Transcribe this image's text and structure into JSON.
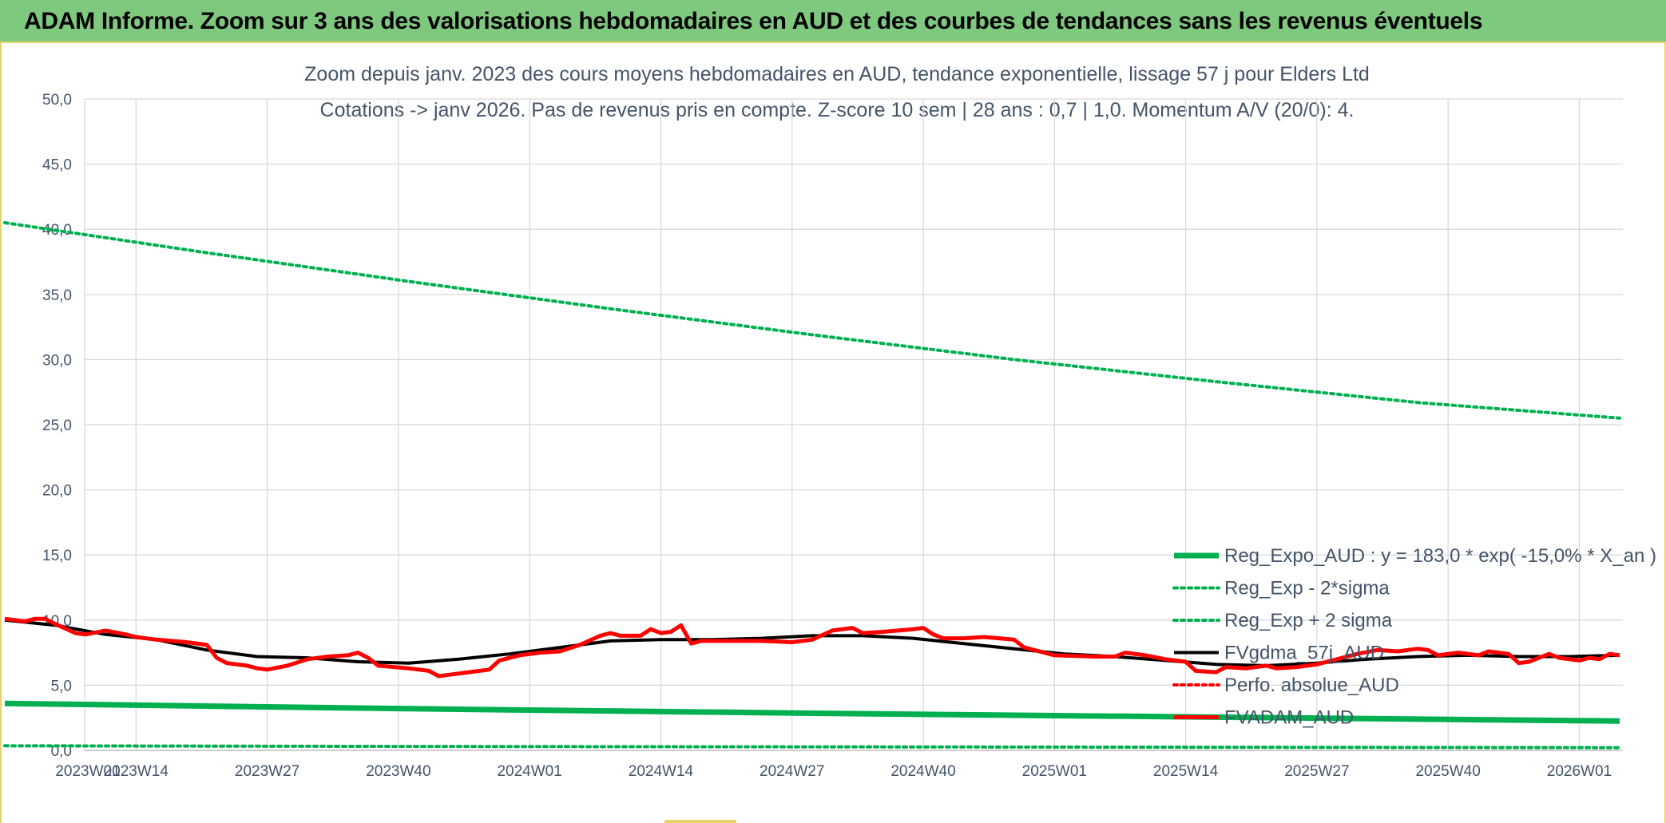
{
  "header": {
    "title": "ADAM Informe. Zoom sur 3 ans des valorisations hebdomadaires en AUD et des courbes de tendances sans les revenus éventuels"
  },
  "colors": {
    "banner": "#7fc97f",
    "border": "#e8d36a",
    "green": "#00b050",
    "red": "#ff0000",
    "black": "#000000",
    "grid": "#d9d9d9",
    "text": "#44546a"
  },
  "chart_data": {
    "type": "line",
    "title_line1": "Zoom depuis janv. 2023 des cours moyens hebdomadaires en AUD, tendance exponentielle, lissage 57 j pour Elders Ltd",
    "title_line2": "Cotations -> janv 2026. Pas de revenus pris en compte. Z-score 10 sem | 28 ans : 0,7 | 1,0. Momentum A/V (20/0): 4.",
    "xlabel": "",
    "ylabel": "",
    "ylim": [
      0,
      50
    ],
    "yticks": [
      "0,0",
      "5,0",
      "10,0",
      "15,0",
      "20,0",
      "25,0",
      "30,0",
      "35,0",
      "40,0",
      "45,0",
      "50,0"
    ],
    "x_range_weeks": [
      0,
      160
    ],
    "xticks": [
      {
        "label": "2023W01",
        "week": 0
      },
      {
        "label": "2023W14",
        "week": 13
      },
      {
        "label": "2023W27",
        "week": 26
      },
      {
        "label": "2023W40",
        "week": 39
      },
      {
        "label": "2024W01",
        "week": 52
      },
      {
        "label": "2024W14",
        "week": 65
      },
      {
        "label": "2024W27",
        "week": 78
      },
      {
        "label": "2024W40",
        "week": 91
      },
      {
        "label": "2025W01",
        "week": 104
      },
      {
        "label": "2025W14",
        "week": 117
      },
      {
        "label": "2025W27",
        "week": 130
      },
      {
        "label": "2025W40",
        "week": 143
      },
      {
        "label": "2026W01",
        "week": 156
      }
    ],
    "grid": true,
    "legend_position": "bottom-right",
    "series": [
      {
        "name": "Reg_Expo_AUD : y = 183,0 * exp( -15,0% *  X_an )",
        "style": "solid-thick",
        "color": "#00b050",
        "points": [
          [
            0,
            3.6
          ],
          [
            40,
            3.2
          ],
          [
            80,
            2.85
          ],
          [
            120,
            2.55
          ],
          [
            160,
            2.25
          ]
        ]
      },
      {
        "name": "Reg_Exp - 2*sigma",
        "style": "dotted",
        "color": "#00b050",
        "points": [
          [
            0,
            0.35
          ],
          [
            40,
            0.3
          ],
          [
            80,
            0.27
          ],
          [
            120,
            0.24
          ],
          [
            160,
            0.21
          ]
        ]
      },
      {
        "name": "Reg_Exp + 2 sigma",
        "style": "dotted",
        "color": "#00b050",
        "points": [
          [
            0,
            40.5
          ],
          [
            20,
            38.2
          ],
          [
            40,
            36.0
          ],
          [
            60,
            33.9
          ],
          [
            80,
            31.9
          ],
          [
            100,
            30.0
          ],
          [
            120,
            28.3
          ],
          [
            140,
            26.7
          ],
          [
            160,
            25.5
          ]
        ]
      },
      {
        "name": "FVgdma_57j_AUD",
        "style": "solid",
        "color": "#000000",
        "points": [
          [
            0,
            10.0
          ],
          [
            5,
            9.6
          ],
          [
            10,
            8.9
          ],
          [
            15,
            8.5
          ],
          [
            20,
            7.7
          ],
          [
            25,
            7.2
          ],
          [
            30,
            7.1
          ],
          [
            35,
            6.8
          ],
          [
            40,
            6.7
          ],
          [
            45,
            7.0
          ],
          [
            50,
            7.4
          ],
          [
            55,
            7.9
          ],
          [
            60,
            8.4
          ],
          [
            65,
            8.5
          ],
          [
            70,
            8.5
          ],
          [
            75,
            8.6
          ],
          [
            80,
            8.8
          ],
          [
            85,
            8.8
          ],
          [
            90,
            8.6
          ],
          [
            95,
            8.2
          ],
          [
            100,
            7.8
          ],
          [
            105,
            7.4
          ],
          [
            110,
            7.2
          ],
          [
            115,
            6.9
          ],
          [
            120,
            6.6
          ],
          [
            125,
            6.5
          ],
          [
            130,
            6.7
          ],
          [
            135,
            7.0
          ],
          [
            140,
            7.2
          ],
          [
            145,
            7.3
          ],
          [
            150,
            7.2
          ],
          [
            155,
            7.2
          ],
          [
            160,
            7.3
          ]
        ]
      },
      {
        "name": "Perfo. absolue_AUD",
        "style": "dotted",
        "color": "#ff0000",
        "points": []
      },
      {
        "name": "FVADAM_AUD",
        "style": "solid-thick",
        "color": "#ff0000",
        "points": [
          [
            0,
            10.1
          ],
          [
            2,
            9.9
          ],
          [
            3,
            10.1
          ],
          [
            4,
            10.1
          ],
          [
            5,
            9.7
          ],
          [
            7,
            9.0
          ],
          [
            8,
            8.9
          ],
          [
            10,
            9.2
          ],
          [
            12,
            8.9
          ],
          [
            13,
            8.7
          ],
          [
            15,
            8.5
          ],
          [
            18,
            8.3
          ],
          [
            20,
            8.1
          ],
          [
            21,
            7.1
          ],
          [
            22,
            6.7
          ],
          [
            24,
            6.5
          ],
          [
            25,
            6.3
          ],
          [
            26,
            6.2
          ],
          [
            28,
            6.5
          ],
          [
            30,
            7.0
          ],
          [
            32,
            7.2
          ],
          [
            34,
            7.3
          ],
          [
            35,
            7.5
          ],
          [
            36,
            7.1
          ],
          [
            37,
            6.5
          ],
          [
            40,
            6.3
          ],
          [
            42,
            6.1
          ],
          [
            43,
            5.7
          ],
          [
            44,
            5.8
          ],
          [
            46,
            6.0
          ],
          [
            48,
            6.2
          ],
          [
            49,
            6.9
          ],
          [
            51,
            7.3
          ],
          [
            53,
            7.5
          ],
          [
            55,
            7.6
          ],
          [
            57,
            8.1
          ],
          [
            59,
            8.8
          ],
          [
            60,
            9.0
          ],
          [
            61,
            8.8
          ],
          [
            63,
            8.8
          ],
          [
            64,
            9.3
          ],
          [
            65,
            9.0
          ],
          [
            66,
            9.1
          ],
          [
            67,
            9.6
          ],
          [
            68,
            8.2
          ],
          [
            69,
            8.4
          ],
          [
            70,
            8.4
          ],
          [
            75,
            8.4
          ],
          [
            78,
            8.3
          ],
          [
            80,
            8.5
          ],
          [
            82,
            9.2
          ],
          [
            84,
            9.4
          ],
          [
            85,
            9.0
          ],
          [
            87,
            9.1
          ],
          [
            90,
            9.3
          ],
          [
            91,
            9.4
          ],
          [
            92,
            8.9
          ],
          [
            93,
            8.6
          ],
          [
            95,
            8.6
          ],
          [
            97,
            8.7
          ],
          [
            100,
            8.5
          ],
          [
            101,
            7.9
          ],
          [
            102,
            7.7
          ],
          [
            104,
            7.3
          ],
          [
            108,
            7.2
          ],
          [
            110,
            7.2
          ],
          [
            111,
            7.5
          ],
          [
            113,
            7.3
          ],
          [
            115,
            7.0
          ],
          [
            117,
            6.8
          ],
          [
            118,
            6.1
          ],
          [
            120,
            6.0
          ],
          [
            121,
            6.4
          ],
          [
            123,
            6.3
          ],
          [
            125,
            6.5
          ],
          [
            126,
            6.3
          ],
          [
            128,
            6.4
          ],
          [
            130,
            6.6
          ],
          [
            132,
            7.0
          ],
          [
            134,
            7.4
          ],
          [
            136,
            7.7
          ],
          [
            138,
            7.6
          ],
          [
            140,
            7.8
          ],
          [
            141,
            7.7
          ],
          [
            142,
            7.3
          ],
          [
            144,
            7.5
          ],
          [
            146,
            7.3
          ],
          [
            147,
            7.6
          ],
          [
            149,
            7.4
          ],
          [
            150,
            6.7
          ],
          [
            151,
            6.8
          ],
          [
            152,
            7.1
          ],
          [
            153,
            7.4
          ],
          [
            154,
            7.1
          ],
          [
            156,
            6.9
          ],
          [
            157,
            7.1
          ],
          [
            158,
            7.0
          ],
          [
            159,
            7.4
          ],
          [
            160,
            7.3
          ]
        ]
      }
    ]
  }
}
